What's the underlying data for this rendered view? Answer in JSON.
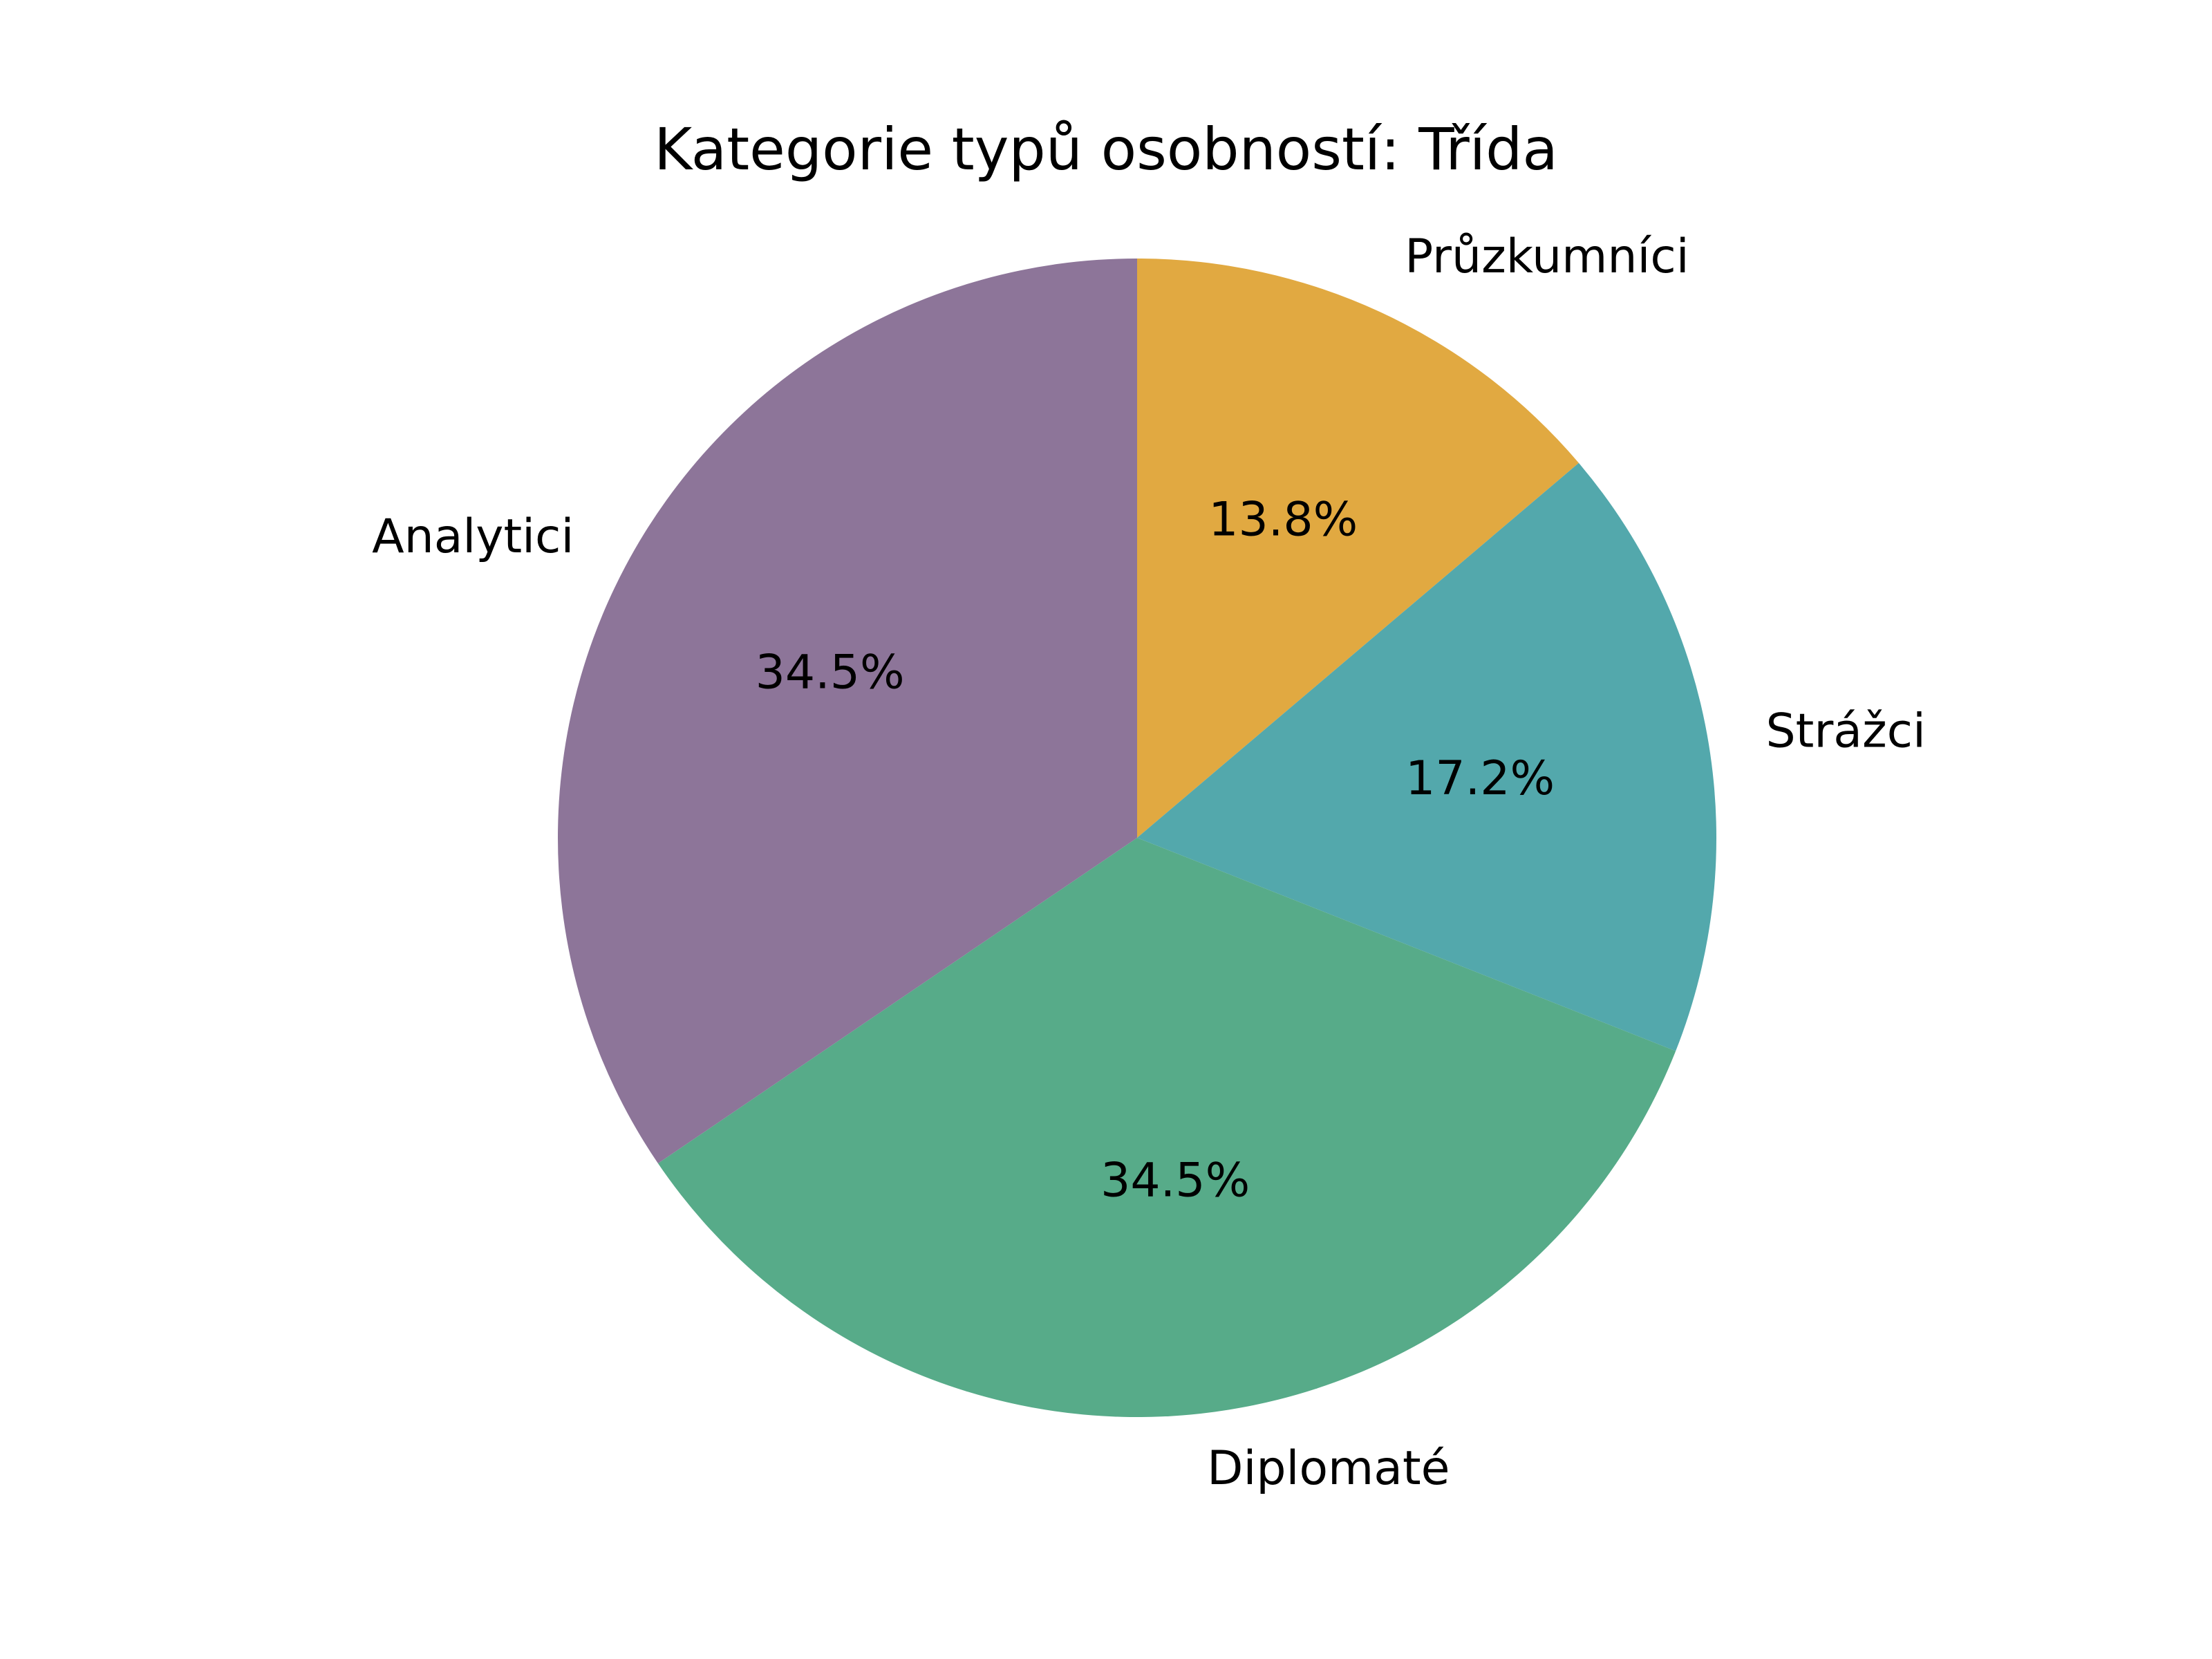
{
  "chart_data": {
    "type": "pie",
    "title": "Kategorie typů osobností: Třída",
    "start_angle_deg": 90,
    "direction": "clockwise",
    "categories": [
      "Průzkumníci",
      "Strážci",
      "Diplomaté",
      "Analytici"
    ],
    "values": [
      13.8,
      17.2,
      34.5,
      34.5
    ],
    "percent_labels": [
      "13.8%",
      "17.2%",
      "34.5%",
      "34.5%"
    ],
    "colors": [
      "#E1A941",
      "#53A8AC",
      "#57AB89",
      "#8D7599"
    ]
  }
}
